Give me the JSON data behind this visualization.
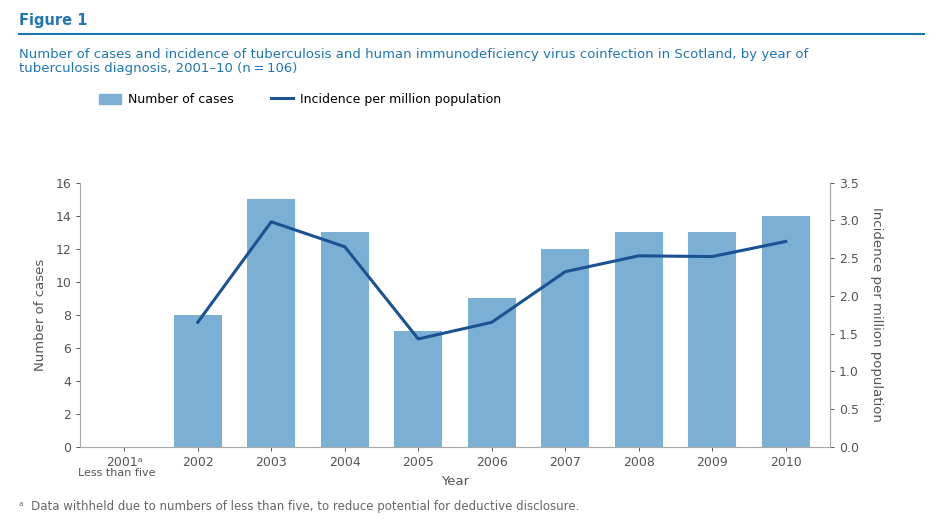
{
  "years": [
    "2001ᵃ",
    "2002",
    "2003",
    "2004",
    "2005",
    "2006",
    "2007",
    "2008",
    "2009",
    "2010"
  ],
  "x_positions": [
    0,
    1,
    2,
    3,
    4,
    5,
    6,
    7,
    8,
    9
  ],
  "bar_values": [
    0,
    8,
    15,
    13,
    7,
    9,
    12,
    13,
    13,
    14
  ],
  "line_values": [
    null,
    1.65,
    2.98,
    2.65,
    1.43,
    1.65,
    2.32,
    2.53,
    2.52,
    2.72
  ],
  "bar_color": "#7bafd4",
  "line_color": "#1a5294",
  "ylim_left": [
    0,
    16
  ],
  "ylim_right": [
    0,
    3.5
  ],
  "yticks_left": [
    0,
    2,
    4,
    6,
    8,
    10,
    12,
    14,
    16
  ],
  "yticks_right": [
    0.0,
    0.5,
    1.0,
    1.5,
    2.0,
    2.5,
    3.0,
    3.5
  ],
  "ylabel_left": "Number of cases",
  "ylabel_right": "Incidence per million population",
  "xlabel": "Year",
  "title_label": "Figure 1",
  "subtitle_line1": "Number of cases and incidence of tuberculosis and human immunodeficiency virus coinfection in Scotland, by year of",
  "subtitle_line2": "tuberculosis diagnosis, 2001–10 (n = 106)",
  "legend_bar_label": "Number of cases",
  "legend_line_label": "Incidence per million population",
  "footnote": "ᵃ  Data withheld due to numbers of less than five, to reduce potential for deductive disclosure.",
  "less_than_five_label": "Less than five",
  "bg_color": "#ffffff",
  "title_color": "#2076b4",
  "subtitle_color": "#2076b4",
  "axis_color": "#555555",
  "bar_width": 0.65
}
